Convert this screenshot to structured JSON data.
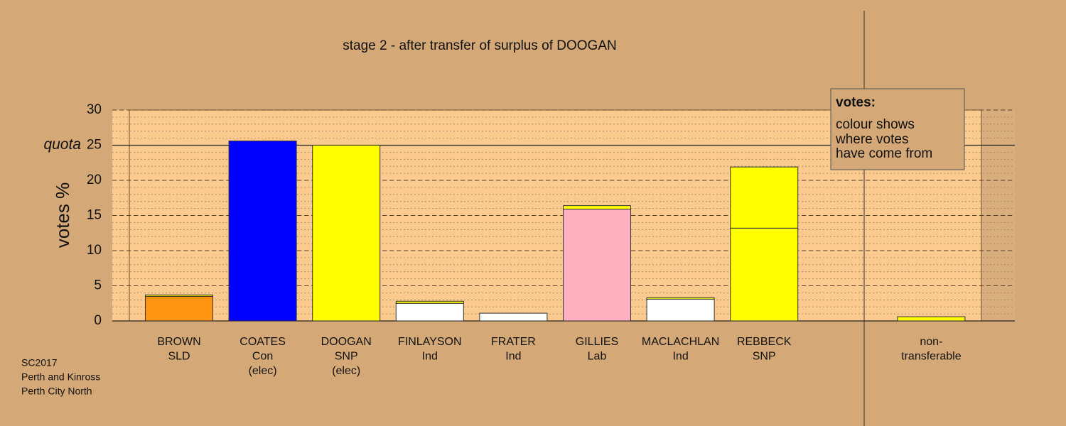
{
  "chart_data": {
    "type": "bar",
    "stacked": true,
    "title": "stage 2 - after transfer of surplus of DOOGAN",
    "y_label": "votes %",
    "categories": [
      [
        "BROWN",
        "SLD"
      ],
      [
        "COATES",
        "Con",
        "(elec)"
      ],
      [
        "DOOGAN",
        "SNP",
        "(elec)"
      ],
      [
        "FINLAYSON",
        "Ind"
      ],
      [
        "FRATER",
        "Ind"
      ],
      [
        "GILLIES",
        "Lab"
      ],
      [
        "MACLACHLAN",
        "Ind"
      ],
      [
        "REBBECK",
        "SNP"
      ],
      null,
      [
        "non-",
        "transferable"
      ]
    ],
    "series": [
      {
        "colors": [
          "#ff9410",
          "#0000ff",
          "#ffff00",
          "#ffffff",
          "#ffffff",
          "#ffb0c0",
          "#ffffff",
          "#ffff00",
          null,
          null
        ],
        "values": [
          3.5,
          25.6,
          25.0,
          2.5,
          1.1,
          15.9,
          3.1,
          13.2,
          null,
          null
        ]
      },
      {
        "color": "#ffff00",
        "values": [
          0.2,
          null,
          null,
          0.3,
          null,
          0.5,
          0.2,
          8.7,
          null,
          0.6
        ]
      }
    ],
    "ylim": [
      0,
      30
    ],
    "yticks": [
      0,
      5,
      10,
      15,
      20,
      25,
      30
    ],
    "minor_grid_step": 1,
    "quota": 25,
    "quota_label": "quota",
    "legend_title": "votes:",
    "legend_text": [
      "colour shows",
      "where votes",
      "have come from"
    ],
    "footnote": [
      "SC2017",
      "Perth and Kinross",
      "Perth City North"
    ]
  }
}
